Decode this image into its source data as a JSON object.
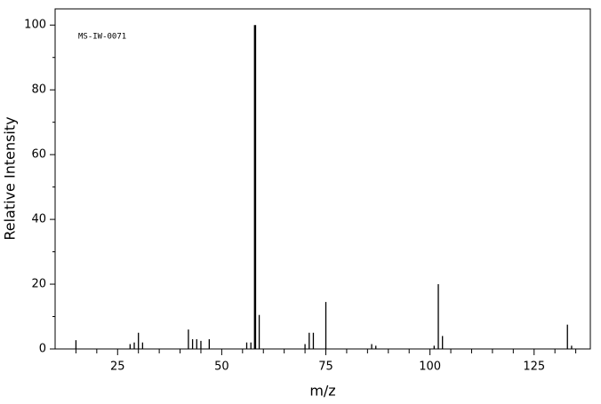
{
  "chart_data": {
    "type": "spectrum",
    "annotation": "MS-IW-0071",
    "xlabel": "m/z",
    "ylabel": "Relative Intensity",
    "x": [
      15,
      28,
      29,
      30,
      31,
      42,
      43,
      44,
      45,
      47,
      56,
      57,
      58,
      59,
      70,
      71,
      72,
      75,
      86,
      87,
      101,
      102,
      103,
      133,
      134
    ],
    "values": [
      2.7,
      1.5,
      2,
      5,
      2,
      6,
      3,
      3,
      2.5,
      3,
      2,
      2,
      100,
      10.5,
      1.5,
      5,
      5,
      14.5,
      1.5,
      1,
      1,
      20,
      4,
      7.5,
      1
    ],
    "color": "#000000",
    "xlim": [
      10,
      138.5
    ],
    "ylim": [
      0,
      105
    ],
    "xticks": [
      25,
      50,
      75,
      100,
      125
    ],
    "xminorticks": [
      15,
      20,
      30,
      35,
      40,
      45,
      55,
      60,
      65,
      70,
      80,
      85,
      90,
      95,
      105,
      110,
      115,
      120,
      130,
      135
    ],
    "yticks": [
      0,
      20,
      40,
      60,
      80,
      100
    ],
    "yminorticks": [
      10,
      30,
      50,
      70,
      90
    ]
  }
}
